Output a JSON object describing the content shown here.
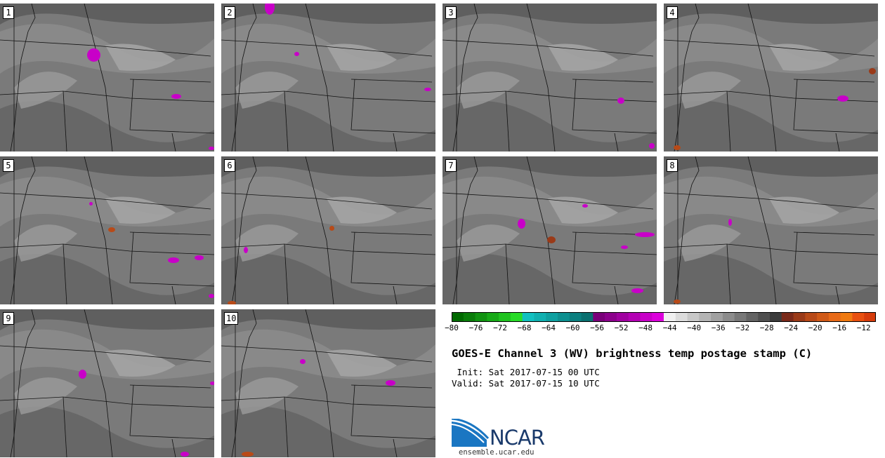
{
  "panels": [
    {
      "label": "1"
    },
    {
      "label": "2"
    },
    {
      "label": "3"
    },
    {
      "label": "4"
    },
    {
      "label": "5"
    },
    {
      "label": "6"
    },
    {
      "label": "7"
    },
    {
      "label": "8"
    },
    {
      "label": "9"
    },
    {
      "label": "10"
    }
  ],
  "colorbar": {
    "ticks": [
      "−80",
      "−76",
      "−72",
      "−68",
      "−64",
      "−60",
      "−56",
      "−52",
      "−48",
      "−44",
      "−40",
      "−36",
      "−32",
      "−28",
      "−24",
      "−20",
      "−16",
      "−12"
    ],
    "range": [
      -80,
      -10
    ],
    "colors": [
      "#006a00",
      "#0a7d0a",
      "#119311",
      "#17aa17",
      "#1fc31f",
      "#28dc28",
      "#11c0c0",
      "#10b0b0",
      "#0ea0a0",
      "#0d9090",
      "#0b8080",
      "#0a7070",
      "#7a007a",
      "#8c008c",
      "#a000a0",
      "#b400b4",
      "#c800c8",
      "#dc00dc",
      "#f0f0f0",
      "#dcdcdc",
      "#c8c8c8",
      "#b4b4b4",
      "#a0a0a0",
      "#8c8c8c",
      "#787878",
      "#646464",
      "#505050",
      "#3c3c3c",
      "#7a2a1a",
      "#9a3a18",
      "#b84a18",
      "#d05a18",
      "#e86a18",
      "#f07a10",
      "#e85010",
      "#d63c0c"
    ]
  },
  "title": "GOES-E Channel 3 (WV) brightness temp postage stamp (C)",
  "init_line": " Init: Sat 2017-07-15 00 UTC",
  "valid_line": "Valid: Sat 2017-07-15 10 UTC",
  "logo_text": "NCAR",
  "logo_url": "ensemble.ucar.edu"
}
